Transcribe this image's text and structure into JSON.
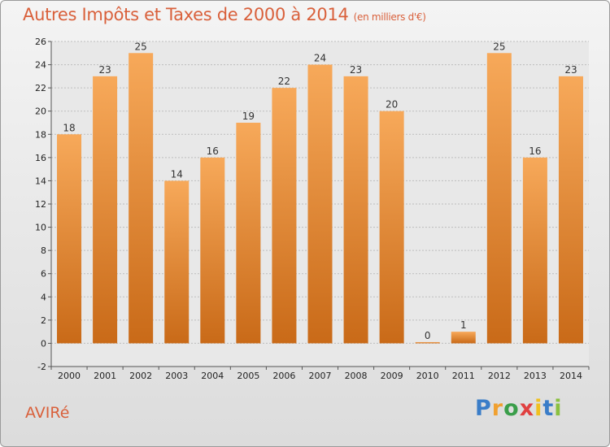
{
  "header": {
    "title": "Autres Impôts et Taxes de 2000 à 2014",
    "unit": "(en milliers d'€)"
  },
  "footer": {
    "town": "AVIRé",
    "logo": {
      "letters": [
        "P",
        "r",
        "o",
        "x",
        "i",
        "t",
        "i"
      ],
      "colors": [
        "#3a7dc8",
        "#f0a030",
        "#3a9e4a",
        "#e04040",
        "#f0c020",
        "#3a7dc8",
        "#8ac040"
      ]
    }
  },
  "colors": {
    "title": "#d9603b",
    "bar_light": "#f7a95a",
    "bar_dark": "#c96a18",
    "grid": "#bdbdbd"
  },
  "chart_data": {
    "type": "bar",
    "title": "Autres Impôts et Taxes de 2000 à 2014",
    "subtitle": "(en milliers d'€)",
    "categories": [
      "2000",
      "2001",
      "2002",
      "2003",
      "2004",
      "2005",
      "2006",
      "2007",
      "2008",
      "2009",
      "2010",
      "2011",
      "2012",
      "2013",
      "2014"
    ],
    "values": [
      18,
      23,
      25,
      14,
      16,
      19,
      22,
      24,
      23,
      20,
      0,
      1,
      25,
      16,
      23
    ],
    "data_labels": [
      "18",
      "23",
      "25",
      "14",
      "16",
      "19",
      "22",
      "24",
      "23",
      "20",
      "0",
      "1",
      "25",
      "16",
      "23"
    ],
    "ylim": [
      -2,
      26
    ],
    "yticks": [
      "-2",
      "0",
      "2",
      "4",
      "6",
      "8",
      "10",
      "12",
      "14",
      "16",
      "18",
      "20",
      "22",
      "24",
      "26"
    ],
    "ytick_values": [
      -2,
      0,
      2,
      4,
      6,
      8,
      10,
      12,
      14,
      16,
      18,
      20,
      22,
      24,
      26
    ],
    "grid": true,
    "legend": "none"
  }
}
